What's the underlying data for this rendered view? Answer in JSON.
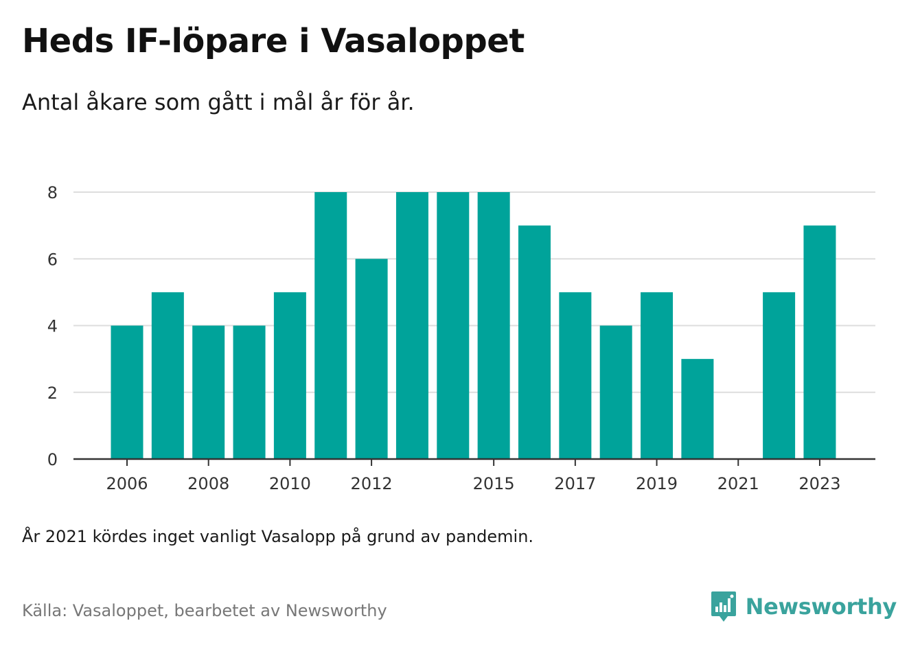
{
  "header": {
    "title": "Heds IF-löpare i Vasaloppet",
    "subtitle": "Antal åkare som gått i mål år för år."
  },
  "footer": {
    "note": "År 2021 kördes inget vanligt Vasalopp på grund av pandemin.",
    "source": "Källa: Vasaloppet, bearbetet av Newsworthy",
    "brand_name": "Newsworthy",
    "brand_icon": "bar-chart-speech-bubble-icon"
  },
  "colors": {
    "bar": "#00a39a",
    "grid": "#dddddd",
    "axis": "#333333",
    "brand": "#3aa39d"
  },
  "chart_data": {
    "type": "bar",
    "categories": [
      "2006",
      "2007",
      "2008",
      "2009",
      "2010",
      "2011",
      "2012",
      "2013",
      "2014",
      "2015",
      "2016",
      "2017",
      "2018",
      "2019",
      "2020",
      "2021",
      "2022",
      "2023"
    ],
    "values": [
      4,
      5,
      4,
      4,
      5,
      8,
      6,
      8,
      8,
      8,
      7,
      5,
      4,
      5,
      3,
      null,
      5,
      7
    ],
    "x_tick_labels": [
      "2006",
      "2008",
      "2010",
      "2012",
      "2015",
      "2017",
      "2019",
      "2021",
      "2023"
    ],
    "y_ticks": [
      0,
      2,
      4,
      6,
      8
    ],
    "ylim": [
      0,
      8
    ],
    "xlabel": "",
    "ylabel": "",
    "grid": true
  }
}
